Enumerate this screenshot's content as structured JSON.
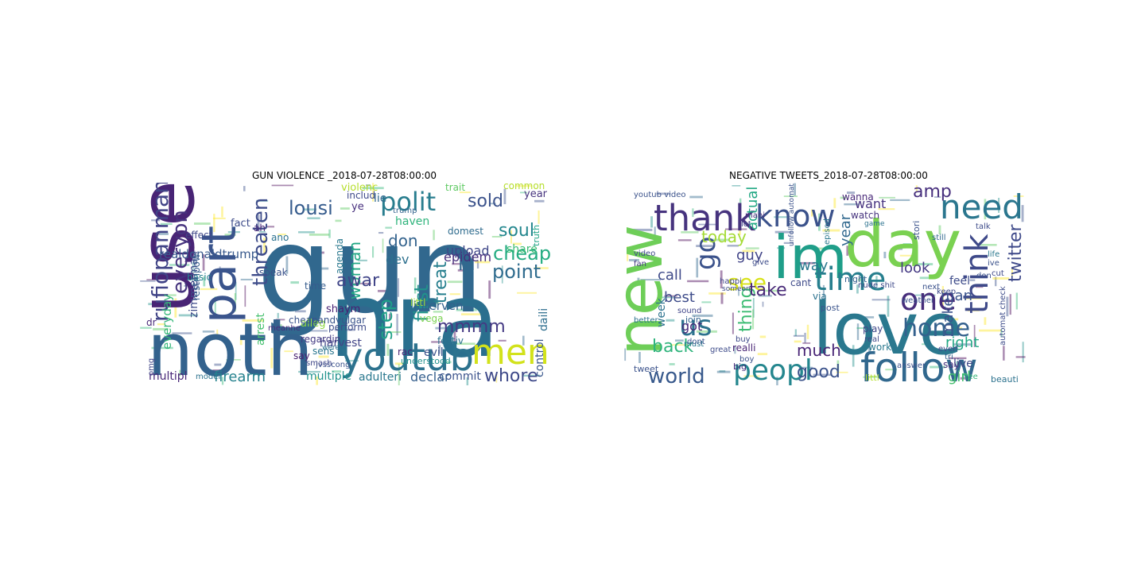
{
  "figure": {
    "panels": [
      {
        "title": "GUN VIOLENCE _2018-07-28T08:00:00",
        "words": [
          {
            "text": "gun",
            "color": "#31688e"
          },
          {
            "text": "nra",
            "color": "#2a6f8e"
          },
          {
            "text": "noth",
            "color": "#33628d"
          },
          {
            "text": "use",
            "color": "#482475"
          },
          {
            "text": "part",
            "color": "#3a548c"
          },
          {
            "text": "youtub",
            "color": "#2c728e"
          },
          {
            "text": "men",
            "color": "#d2e21b"
          },
          {
            "text": "polit",
            "color": "#287d8e"
          },
          {
            "text": "lousi",
            "color": "#365c8d"
          },
          {
            "text": "threaten",
            "color": "#3e4c8a"
          },
          {
            "text": "rufiopanman",
            "color": "#414487"
          },
          {
            "text": "everyon",
            "color": "#46337e"
          },
          {
            "text": "sold",
            "color": "#3b528b"
          },
          {
            "text": "soul",
            "color": "#24878e"
          },
          {
            "text": "cheap",
            "color": "#25ac82"
          },
          {
            "text": "point",
            "color": "#2f6c8e"
          },
          {
            "text": "id",
            "color": "#31688e"
          },
          {
            "text": "treat",
            "color": "#277f8e"
          },
          {
            "text": "first",
            "color": "#21918c"
          },
          {
            "text": "step",
            "color": "#1fa188"
          },
          {
            "text": "mmmm",
            "color": "#443983"
          },
          {
            "text": "whore",
            "color": "#3e4989"
          },
          {
            "text": "epidem",
            "color": "#472d7b"
          },
          {
            "text": "woman",
            "color": "#22a884"
          },
          {
            "text": "awar",
            "color": "#404588"
          },
          {
            "text": "don",
            "color": "#33638d"
          },
          {
            "text": "dev",
            "color": "#2d708e"
          },
          {
            "text": "upload",
            "color": "#3f4788"
          },
          {
            "text": "declar",
            "color": "#355f8d"
          },
          {
            "text": "firearm",
            "color": "#26828e"
          },
          {
            "text": "realdonaldtrump",
            "color": "#38598c"
          },
          {
            "text": "everyday",
            "color": "#35b779"
          },
          {
            "text": "zimmerman",
            "color": "#3e4a89"
          },
          {
            "text": "multipl",
            "color": "#482878"
          },
          {
            "text": "multiple",
            "color": "#20928c"
          },
          {
            "text": "adulteri",
            "color": "#2a788e"
          },
          {
            "text": "control",
            "color": "#39568c"
          },
          {
            "text": "daili",
            "color": "#2e6e8e"
          },
          {
            "text": "commit",
            "color": "#3b528b"
          },
          {
            "text": "interven",
            "color": "#34618d"
          },
          {
            "text": "harvest",
            "color": "#414487"
          },
          {
            "text": "arrest",
            "color": "#46c06f"
          },
          {
            "text": "alleg",
            "color": "#8fd744"
          },
          {
            "text": "shaym",
            "color": "#482173"
          },
          {
            "text": "agenda",
            "color": "#2a788e"
          },
          {
            "text": "violenc",
            "color": "#b5de2b"
          },
          {
            "text": "trait",
            "color": "#5ec962"
          },
          {
            "text": "year",
            "color": "#46337e"
          },
          {
            "text": "haven",
            "color": "#2fb47c"
          },
          {
            "text": "includ",
            "color": "#3e4989"
          },
          {
            "text": "domest",
            "color": "#2f6c8e"
          },
          {
            "text": "share",
            "color": "#3dbc74"
          },
          {
            "text": "trump",
            "color": "#33638d"
          },
          {
            "text": "vega",
            "color": "#7ad151"
          },
          {
            "text": "littl",
            "color": "#a0da39"
          },
          {
            "text": "festiv",
            "color": "#2c728e"
          },
          {
            "text": "rac",
            "color": "#482576"
          },
          {
            "text": "evil",
            "color": "#3b528b"
          },
          {
            "text": "understood",
            "color": "#21918c"
          },
          {
            "text": "lie",
            "color": "#31688e"
          },
          {
            "text": "ye",
            "color": "#472f7d"
          },
          {
            "text": "fact",
            "color": "#3e4c8a"
          },
          {
            "text": "ah",
            "color": "#482878"
          },
          {
            "text": "effect",
            "color": "#3f4788"
          },
          {
            "text": "ano",
            "color": "#2c728e"
          },
          {
            "text": "basic",
            "color": "#26828e"
          },
          {
            "text": "speak",
            "color": "#3b528b"
          },
          {
            "text": "time",
            "color": "#365c8d"
          },
          {
            "text": "restinpow",
            "color": "#355f8d"
          },
          {
            "text": "dr",
            "color": "#482878"
          },
          {
            "text": "cheapandvulgar",
            "color": "#3a548c"
          },
          {
            "text": "perform",
            "color": "#3e4c8a"
          },
          {
            "text": "regardin",
            "color": "#443a83"
          },
          {
            "text": "sens",
            "color": "#2a768e"
          },
          {
            "text": "say",
            "color": "#482071"
          },
          {
            "text": "jvsscong",
            "color": "#3b528b"
          },
          {
            "text": "weren",
            "color": "#2d708e"
          },
          {
            "text": "smash",
            "color": "#3f4788"
          },
          {
            "text": "modei",
            "color": "#2c728e"
          },
          {
            "text": "omg",
            "color": "#404588"
          },
          {
            "text": "truth",
            "color": "#20a386"
          },
          {
            "text": "common",
            "color": "#b5de2b"
          },
          {
            "text": "meanhe",
            "color": "#472c7a"
          }
        ]
      },
      {
        "title": "NEGATIVE TWEETS_2018-07-28T08:00:00",
        "words": [
          {
            "text": "im",
            "color": "#1f9e89"
          },
          {
            "text": "love",
            "color": "#2a788e"
          },
          {
            "text": "day",
            "color": "#7ad151"
          },
          {
            "text": "new",
            "color": "#6ece58"
          },
          {
            "text": "thank",
            "color": "#46337e"
          },
          {
            "text": "follow",
            "color": "#31688e"
          },
          {
            "text": "need",
            "color": "#2a768e"
          },
          {
            "text": "know",
            "color": "#3b528b"
          },
          {
            "text": "think",
            "color": "#3e4989"
          },
          {
            "text": "one",
            "color": "#472d7b"
          },
          {
            "text": "time",
            "color": "#277f8e"
          },
          {
            "text": "peopl",
            "color": "#24868e"
          },
          {
            "text": "home",
            "color": "#34618d"
          },
          {
            "text": "us",
            "color": "#2c728e"
          },
          {
            "text": "go",
            "color": "#3b528b"
          },
          {
            "text": "see",
            "color": "#d8e219"
          },
          {
            "text": "world",
            "color": "#38598c"
          },
          {
            "text": "good",
            "color": "#3b528b"
          },
          {
            "text": "much",
            "color": "#482475"
          },
          {
            "text": "back",
            "color": "#2fb47c"
          },
          {
            "text": "today",
            "color": "#a5db36"
          },
          {
            "text": "thing",
            "color": "#3dbc74"
          },
          {
            "text": "guy",
            "color": "#414487"
          },
          {
            "text": "take",
            "color": "#482878"
          },
          {
            "text": "call",
            "color": "#3e4a89"
          },
          {
            "text": "look",
            "color": "#443983"
          },
          {
            "text": "best",
            "color": "#3e4c8a"
          },
          {
            "text": "man",
            "color": "#3a548c"
          },
          {
            "text": "right",
            "color": "#22a884"
          },
          {
            "text": "girl",
            "color": "#46c06f"
          },
          {
            "text": "amp",
            "color": "#472f7d"
          },
          {
            "text": "twitter",
            "color": "#3e4989"
          },
          {
            "text": "make",
            "color": "#3b528b"
          },
          {
            "text": "got",
            "color": "#482878"
          },
          {
            "text": "week",
            "color": "#2c728e"
          },
          {
            "text": "want",
            "color": "#46327e"
          },
          {
            "text": "way",
            "color": "#2a788e"
          },
          {
            "text": "year",
            "color": "#31688e"
          },
          {
            "text": "actual",
            "color": "#22a884"
          },
          {
            "text": "feel",
            "color": "#3e4c8a"
          },
          {
            "text": "youtub video",
            "color": "#3b528b"
          },
          {
            "text": "happi",
            "color": "#404588"
          },
          {
            "text": "live",
            "color": "#3e4989"
          },
          {
            "text": "say",
            "color": "#46327e"
          },
          {
            "text": "play",
            "color": "#3f4788"
          },
          {
            "text": "work",
            "color": "#2a788e"
          },
          {
            "text": "realli",
            "color": "#482475"
          },
          {
            "text": "big",
            "color": "#472d7b"
          },
          {
            "text": "tweet",
            "color": "#3b528b"
          },
          {
            "text": "littl",
            "color": "#b5de2b"
          },
          {
            "text": "wanna",
            "color": "#482878"
          },
          {
            "text": "watch",
            "color": "#46337e"
          },
          {
            "text": "night",
            "color": "#355f8d"
          },
          {
            "text": "cant",
            "color": "#3e4a89"
          },
          {
            "text": "via",
            "color": "#2c728e"
          },
          {
            "text": "post",
            "color": "#3a548c"
          },
          {
            "text": "join",
            "color": "#33638d"
          },
          {
            "text": "must",
            "color": "#2a768e"
          },
          {
            "text": "great",
            "color": "#3e4c8a"
          },
          {
            "text": "dont",
            "color": "#3b528b"
          },
          {
            "text": "video",
            "color": "#3e4989"
          },
          {
            "text": "fan",
            "color": "#443983"
          },
          {
            "text": "still",
            "color": "#31688e"
          },
          {
            "text": "stori",
            "color": "#3b528b"
          },
          {
            "text": "mani",
            "color": "#472d7b"
          },
          {
            "text": "let",
            "color": "#404588"
          },
          {
            "text": "give",
            "color": "#3e4c8a"
          },
          {
            "text": "beauti",
            "color": "#2c728e"
          },
          {
            "text": "free",
            "color": "#35b779"
          },
          {
            "text": "keep",
            "color": "#3e4989"
          },
          {
            "text": "next",
            "color": "#3b528b"
          },
          {
            "text": "everi",
            "color": "#3e4c8a"
          },
          {
            "text": "tri",
            "color": "#33638d"
          },
          {
            "text": "don",
            "color": "#3b528b"
          },
          {
            "text": "nude shit",
            "color": "#3e4989"
          },
          {
            "text": "episod",
            "color": "#2a788e"
          },
          {
            "text": "automat check",
            "color": "#3e4c8a"
          },
          {
            "text": "unfollow automat",
            "color": "#3b528b"
          },
          {
            "text": "sound",
            "color": "#404588"
          },
          {
            "text": "buy",
            "color": "#3e4989"
          },
          {
            "text": "boy",
            "color": "#3b528b"
          },
          {
            "text": "game",
            "color": "#2c728e"
          },
          {
            "text": "someon",
            "color": "#3e4c8a"
          },
          {
            "text": "ive",
            "color": "#3b528b"
          },
          {
            "text": "cut",
            "color": "#3e4989"
          },
          {
            "text": "life",
            "color": "#2a788e"
          },
          {
            "text": "talk",
            "color": "#3e4c8a"
          },
          {
            "text": "weather",
            "color": "#3b528b"
          },
          {
            "text": "real",
            "color": "#3e4989"
          },
          {
            "text": "better",
            "color": "#2c728e"
          },
          {
            "text": "answer",
            "color": "#3b528b"
          }
        ]
      }
    ]
  }
}
